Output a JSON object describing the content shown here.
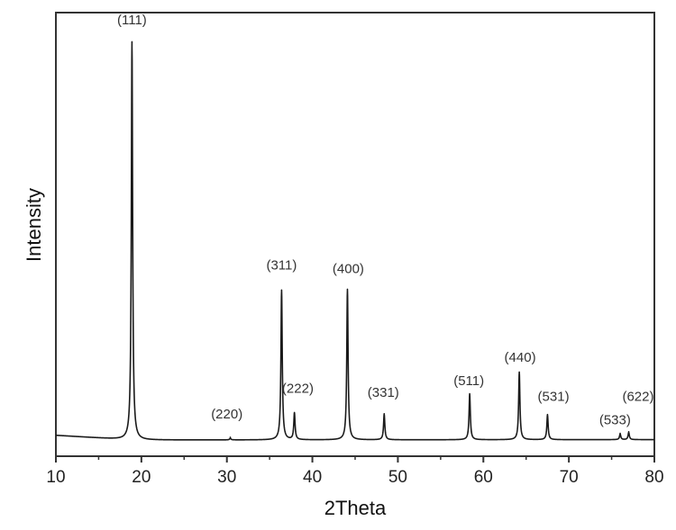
{
  "chart_data": {
    "type": "line",
    "title": "",
    "xlabel": "2Theta",
    "ylabel": "Intensity",
    "xlim": [
      10,
      80
    ],
    "ylim": [
      0,
      110
    ],
    "x_ticks": [
      10,
      20,
      30,
      40,
      50,
      60,
      70,
      80
    ],
    "x_minor_ticks": [
      15,
      25,
      35,
      45,
      55,
      65,
      75
    ],
    "y_ticks": [],
    "grid": false,
    "legend": null,
    "baseline": {
      "start_x": 10,
      "start_y": 1.2,
      "end_y": 0
    },
    "series": [
      {
        "name": "XRD pattern",
        "color": "#1a1a1a",
        "peaks": [
          {
            "hkl": "(111)",
            "two_theta": 18.9,
            "intensity": 100
          },
          {
            "hkl": "(220)",
            "two_theta": 30.4,
            "intensity": 0.4
          },
          {
            "hkl": "(311)",
            "two_theta": 36.4,
            "intensity": 37.6
          },
          {
            "hkl": "(222)",
            "two_theta": 37.9,
            "intensity": 6.7
          },
          {
            "hkl": "(400)",
            "two_theta": 44.1,
            "intensity": 37.8
          },
          {
            "hkl": "(331)",
            "two_theta": 48.4,
            "intensity": 6.4
          },
          {
            "hkl": "(511)",
            "two_theta": 58.4,
            "intensity": 11.5
          },
          {
            "hkl": "(440)",
            "two_theta": 64.2,
            "intensity": 17.0
          },
          {
            "hkl": "(531)",
            "two_theta": 67.5,
            "intensity": 6.2
          },
          {
            "hkl": "(533)",
            "two_theta": 76.0,
            "intensity": 1.4
          },
          {
            "hkl": "(622)",
            "two_theta": 77.0,
            "intensity": 1.8
          }
        ]
      }
    ],
    "annotations": [
      {
        "text": "(111)",
        "x": 18.9,
        "label_y": 106
      },
      {
        "text": "(220)",
        "x": 30.0,
        "label_y": 5.5
      },
      {
        "text": "(311)",
        "x": 36.4,
        "label_y": 43.5
      },
      {
        "text": "(222)",
        "x": 38.3,
        "label_y": 12
      },
      {
        "text": "(400)",
        "x": 44.2,
        "label_y": 42.5
      },
      {
        "text": "(331)",
        "x": 48.3,
        "label_y": 11
      },
      {
        "text": "(511)",
        "x": 58.3,
        "label_y": 14
      },
      {
        "text": "(440)",
        "x": 64.3,
        "label_y": 20
      },
      {
        "text": "(531)",
        "x": 68.2,
        "label_y": 10
      },
      {
        "text": "(533)",
        "x": 75.4,
        "label_y": 4
      },
      {
        "text": "(622)",
        "x": 78.1,
        "label_y": 10
      }
    ]
  },
  "axes": {
    "x_title": "2Theta",
    "y_title": "Intensity"
  }
}
